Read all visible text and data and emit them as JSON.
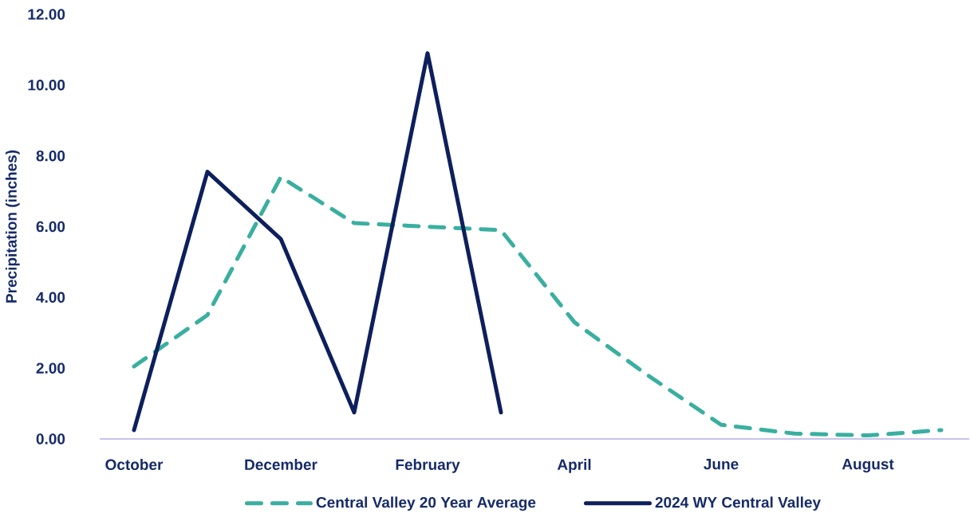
{
  "chart_data": {
    "type": "line",
    "ylabel": "Precipitation (inches)",
    "categories": [
      "October",
      null,
      "December",
      null,
      "February",
      null,
      "April",
      null,
      "June",
      null,
      "August",
      null
    ],
    "series": [
      {
        "name": "Central Valley 20 Year Average",
        "color": "#3aafa0",
        "line_style": "dashed",
        "values": [
          2.05,
          3.5,
          7.4,
          6.1,
          6.0,
          5.9,
          3.3,
          1.8,
          0.4,
          0.15,
          0.1,
          0.25
        ]
      },
      {
        "name": "2024 WY Central Valley",
        "color": "#0d1f5c",
        "line_style": "solid",
        "values": [
          0.25,
          7.55,
          5.65,
          0.75,
          10.9,
          0.75,
          null,
          null,
          null,
          null,
          null,
          null
        ]
      }
    ],
    "ylim": [
      0,
      12
    ],
    "yticks": [
      {
        "value": 0,
        "label": "0.00"
      },
      {
        "value": 2,
        "label": "2.00"
      },
      {
        "value": 4,
        "label": "4.00"
      },
      {
        "value": 6,
        "label": "6.00"
      },
      {
        "value": 8,
        "label": "8.00"
      },
      {
        "value": 10,
        "label": "10.00"
      },
      {
        "value": 12,
        "label": "12.00"
      }
    ],
    "legend": "bottom"
  }
}
